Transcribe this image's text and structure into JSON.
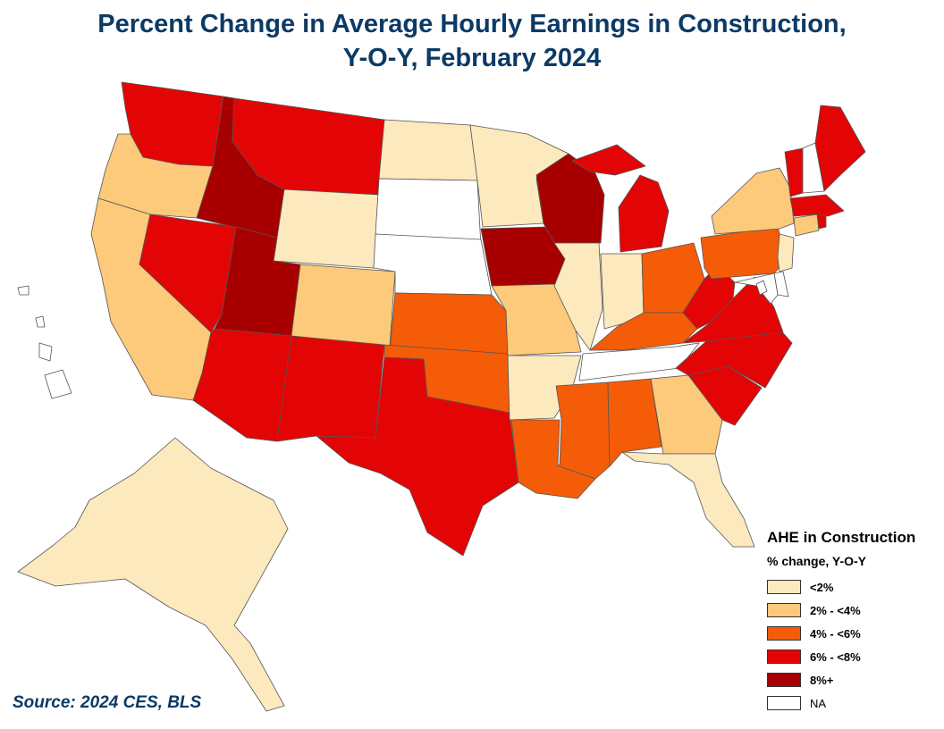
{
  "title_line1": "Percent Change in Average Hourly Earnings in Construction,",
  "title_line2": "Y-O-Y, February 2024",
  "source": "Source: 2024 CES, BLS",
  "legend": {
    "title": "AHE in Construction",
    "subtitle": "% change, Y-O-Y",
    "items": [
      {
        "label": "<2%",
        "color": "#fde9be"
      },
      {
        "label": "2% - <4%",
        "color": "#fdc97a"
      },
      {
        "label": "4% - <6%",
        "color": "#f45c08"
      },
      {
        "label": "6% - <8%",
        "color": "#e30505"
      },
      {
        "label": "8%+",
        "color": "#a80000"
      },
      {
        "label": "NA",
        "color": "#ffffff"
      }
    ]
  },
  "colors": {
    "lt2": "#fde9be",
    "c2to4": "#fdc97a",
    "c4to6": "#f45c08",
    "c6to8": "#e30505",
    "c8plus": "#a80000",
    "na": "#ffffff",
    "title": "#0b3a66"
  },
  "state_categories": {
    "WA": "6% - <8%",
    "OR": "2% - <4%",
    "CA": "2% - <4%",
    "NV": "6% - <8%",
    "ID": "8%+",
    "MT": "6% - <8%",
    "WY": "<2%",
    "UT": "8%+",
    "AZ": "6% - <8%",
    "NM": "6% - <8%",
    "CO": "2% - <4%",
    "ND": "<2%",
    "SD": "NA",
    "NE": "NA",
    "KS": "4% - <6%",
    "OK": "4% - <6%",
    "TX": "6% - <8%",
    "MN": "<2%",
    "IA": "8%+",
    "MO": "2% - <4%",
    "AR": "<2%",
    "LA": "4% - <6%",
    "WI": "8%+",
    "IL": "<2%",
    "MI": "6% - <8%",
    "IN": "<2%",
    "OH": "4% - <6%",
    "KY": "4% - <6%",
    "TN": "NA",
    "MS": "4% - <6%",
    "AL": "4% - <6%",
    "GA": "2% - <4%",
    "FL": "<2%",
    "SC": "6% - <8%",
    "NC": "6% - <8%",
    "VA": "6% - <8%",
    "WV": "6% - <8%",
    "PA": "4% - <6%",
    "NY": "2% - <4%",
    "VT": "6% - <8%",
    "NH": "NA",
    "ME": "6% - <8%",
    "MA": "6% - <8%",
    "RI": "6% - <8%",
    "CT": "2% - <4%",
    "NJ": "<2%",
    "DE": "NA",
    "MD": "NA",
    "DC": "NA",
    "AK": "<2%",
    "HI": "NA"
  }
}
